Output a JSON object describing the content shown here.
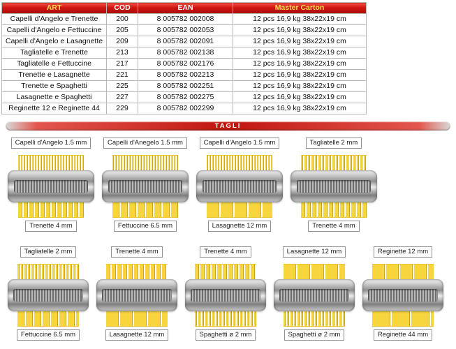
{
  "colors": {
    "header_bg": "#d01510",
    "header_text": "#ffffff",
    "header_text_accent": "#ffe24d",
    "pasta_yellow": "#f6d53d",
    "banner_red": "#c1160f"
  },
  "table": {
    "headers": [
      "ART",
      "COD",
      "EAN",
      "Master Carton"
    ],
    "rows": [
      {
        "art": "Capelli d'Angelo e Trenette",
        "cod": "200",
        "ean": "8 005782 002008",
        "carton": "12 pcs 16,9 kg 38x22x19 cm"
      },
      {
        "art": "Capelli d'Angelo e Fettuccine",
        "cod": "205",
        "ean": "8 005782 002053",
        "carton": "12 pcs 16,9 kg 38x22x19 cm"
      },
      {
        "art": "Capelli d'Angelo e Lasagnette",
        "cod": "209",
        "ean": "8 005782 002091",
        "carton": "12 pcs 16,9 kg 38x22x19 cm"
      },
      {
        "art": "Tagliatelle e Trenette",
        "cod": "213",
        "ean": "8 005782 002138",
        "carton": "12 pcs 16,9 kg 38x22x19 cm"
      },
      {
        "art": "Tagliatelle e Fettuccine",
        "cod": "217",
        "ean": "8 005782 002176",
        "carton": "12 pcs 16,9 kg 38x22x19 cm"
      },
      {
        "art": "Trenette e Lasagnette",
        "cod": "221",
        "ean": "8 005782 002213",
        "carton": "12 pcs 16,9 kg 38x22x19 cm"
      },
      {
        "art": "Trenette e Spaghetti",
        "cod": "225",
        "ean": "8 005782 002251",
        "carton": "12 pcs 16,9 kg 38x22x19 cm"
      },
      {
        "art": "Lasagnette e Spaghetti",
        "cod": "227",
        "ean": "8 005782 002275",
        "carton": "12 pcs 16,9 kg 38x22x19 cm"
      },
      {
        "art": "Reginette 12 e Reginette 44",
        "cod": "229",
        "ean": "8 005782 002299",
        "carton": "12 pcs 16,9 kg 38x22x19 cm"
      }
    ]
  },
  "banner": {
    "label": "TAGLI"
  },
  "tagli": {
    "rows": [
      {
        "items": [
          {
            "top_label": "Capelli d'Angelo 1.5 mm",
            "bottom_label": "Trenette 4 mm"
          },
          {
            "top_label": "Capelli d'Anegelo 1.5 mm",
            "bottom_label": "Fettuccine 6.5 mm"
          },
          {
            "top_label": "Capelli d'Angelo 1.5 mm",
            "bottom_label": "Lasagnette 12 mm"
          },
          {
            "top_label": "Tagliatelle 2 mm",
            "bottom_label": "Trenette 4 mm"
          }
        ]
      },
      {
        "items": [
          {
            "top_label": "Tagliatelle 2 mm",
            "bottom_label": "Fettuccine 6.5 mm"
          },
          {
            "top_label": "Trenette 4 mm",
            "bottom_label": "Lasagnette 12 mm"
          },
          {
            "top_label": "Trenette 4 mm",
            "bottom_label": "Spaghetti ø 2 mm"
          },
          {
            "top_label": "Lasagnette 12 mm",
            "bottom_label": "Spaghetti ø 2 mm"
          },
          {
            "top_label": "Reginette 12 mm",
            "bottom_label": "Reginette 44 mm"
          }
        ]
      }
    ]
  }
}
